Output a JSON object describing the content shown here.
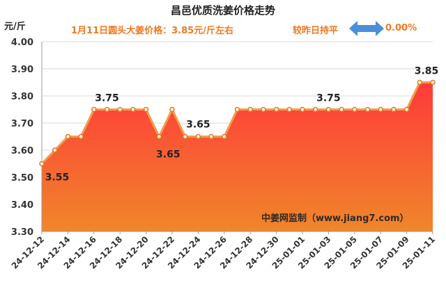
{
  "header": {
    "title": "昌邑优质洗姜价格走势",
    "unit": "元/斤",
    "price_note": "1月11日圆头大姜价格：3.85元/斤左右",
    "trend_label": "较昨日持平",
    "trend_value": "0.00%",
    "trend_icon": "double-arrow-icon"
  },
  "colors": {
    "accent_text": "#f07820",
    "line": "#f39c4a",
    "fill_top": "#ff3a3a",
    "fill_bottom": "#f0862a",
    "arrow": "#4a8fd8"
  },
  "chart_data": {
    "type": "area",
    "x": [
      "24-12-12",
      "24-12-13",
      "24-12-14",
      "24-12-15",
      "24-12-16",
      "24-12-17",
      "24-12-18",
      "24-12-19",
      "24-12-20",
      "24-12-21",
      "24-12-22",
      "24-12-23",
      "24-12-24",
      "24-12-25",
      "24-12-26",
      "24-12-27",
      "24-12-28",
      "24-12-29",
      "24-12-30",
      "24-12-31",
      "25-01-01",
      "25-01-02",
      "25-01-03",
      "25-01-04",
      "25-01-05",
      "25-01-06",
      "25-01-07",
      "25-01-08",
      "25-01-09",
      "25-01-10",
      "25-01-11"
    ],
    "x_tick_labels": [
      "24-12-12",
      "24-12-14",
      "24-12-16",
      "24-12-18",
      "24-12-20",
      "24-12-22",
      "24-12-24",
      "24-12-26",
      "24-12-28",
      "24-12-30",
      "25-01-01",
      "25-01-03",
      "25-01-05",
      "25-01-07",
      "25-01-09",
      "25-01-11"
    ],
    "values": [
      3.55,
      3.6,
      3.65,
      3.65,
      3.75,
      3.75,
      3.75,
      3.75,
      3.75,
      3.65,
      3.75,
      3.65,
      3.65,
      3.65,
      3.65,
      3.75,
      3.75,
      3.75,
      3.75,
      3.75,
      3.75,
      3.75,
      3.75,
      3.75,
      3.75,
      3.75,
      3.75,
      3.75,
      3.75,
      3.85,
      3.85
    ],
    "ylim": [
      3.3,
      4.0
    ],
    "y_ticks": [
      "3.30",
      "3.40",
      "3.50",
      "3.60",
      "3.70",
      "3.80",
      "3.90",
      "4.00"
    ],
    "grid": true,
    "data_labels": [
      {
        "index": 0,
        "text": "3.55"
      },
      {
        "index": 5,
        "text": "3.75"
      },
      {
        "index": 9,
        "text": "3.65"
      },
      {
        "index": 12,
        "text": "3.65"
      },
      {
        "index": 22,
        "text": "3.75"
      },
      {
        "index": 30,
        "text": "3.85"
      }
    ],
    "watermark": "中姜网监制（www.jiang7.com）"
  }
}
